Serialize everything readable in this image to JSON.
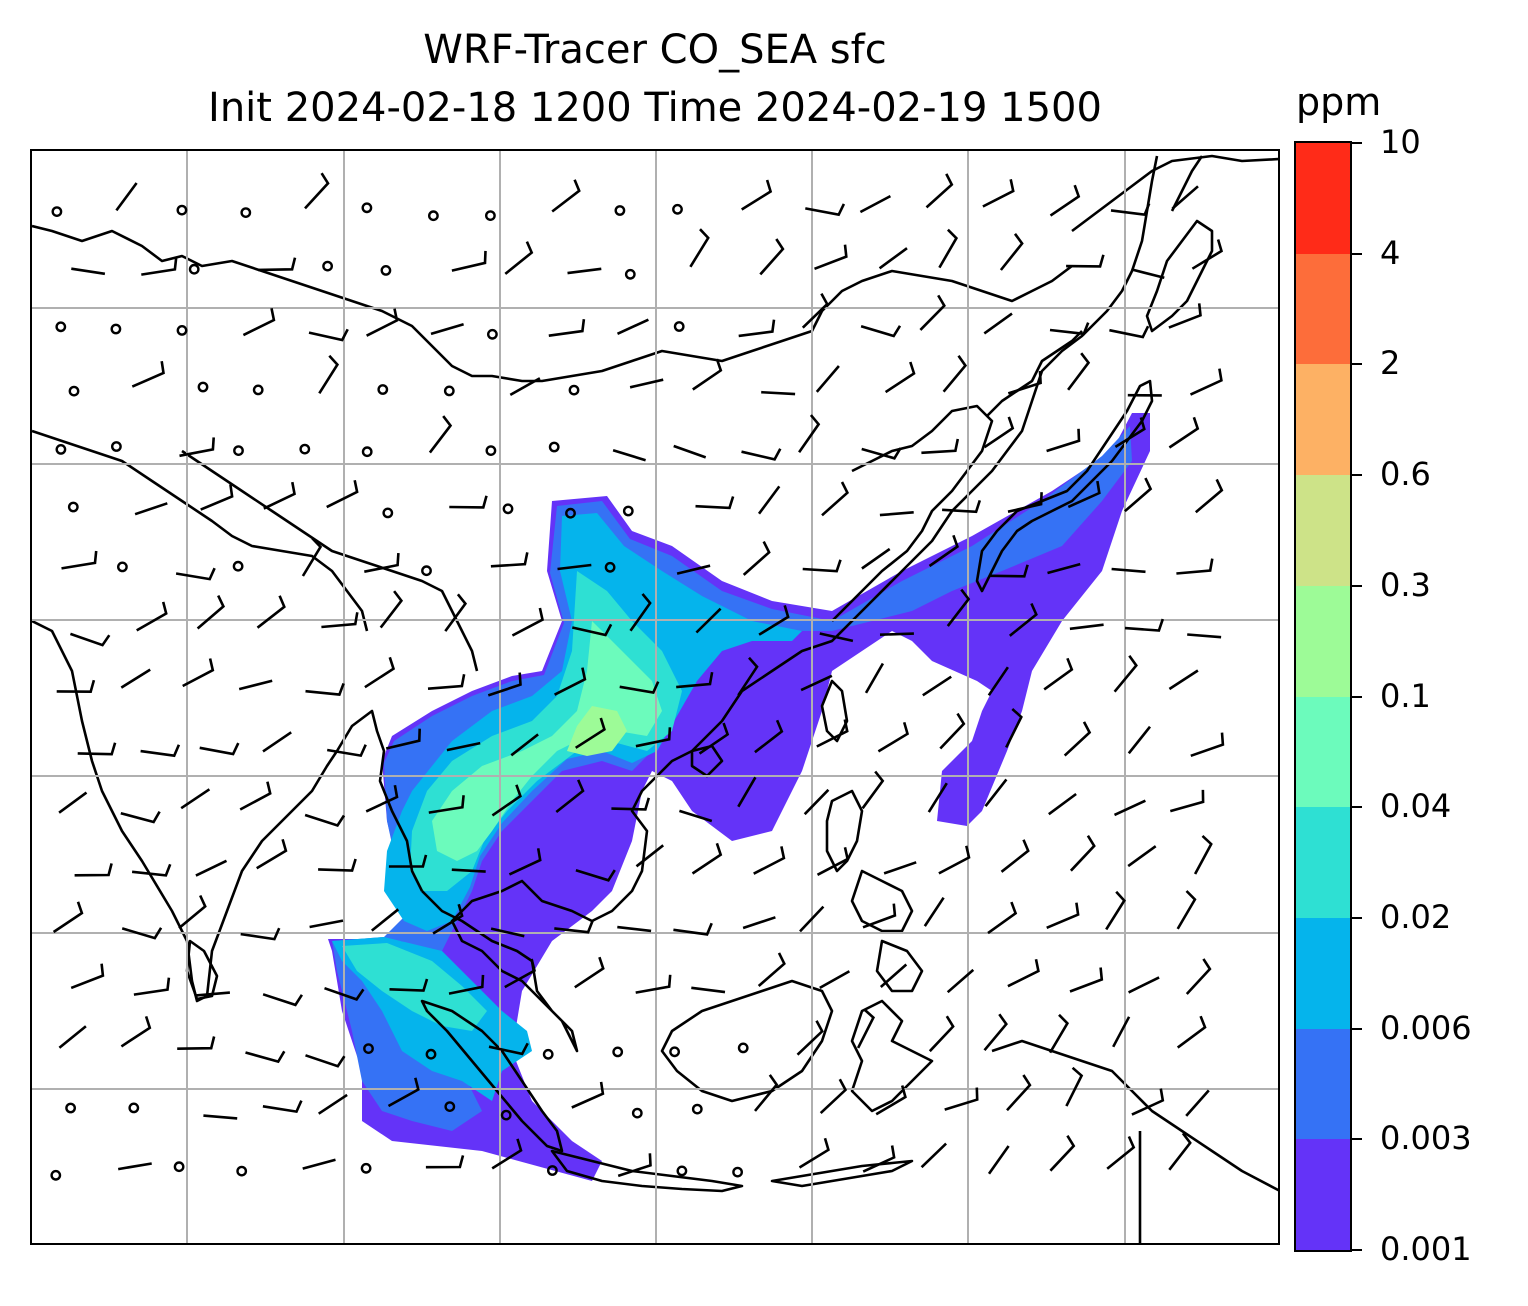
{
  "title": {
    "line1": "WRF-Tracer CO_SEA sfc",
    "line2": "Init 2024-02-18 1200 Time 2024-02-19 1500"
  },
  "colorbar": {
    "unit": "ppm",
    "levels": [
      "0.001",
      "0.003",
      "0.006",
      "0.02",
      "0.04",
      "0.1",
      "0.3",
      "0.6",
      "2",
      "4",
      "10"
    ],
    "colors": [
      "#6433f8",
      "#3572f5",
      "#05b4ec",
      "#2ee0d3",
      "#6cfbbc",
      "#9dfb97",
      "#cde388",
      "#fdb164",
      "#fd6d3a",
      "#ff2b18"
    ]
  },
  "map": {
    "gridlines": true,
    "coastline_color": "#000000",
    "wind_barb_color": "#000000"
  }
}
